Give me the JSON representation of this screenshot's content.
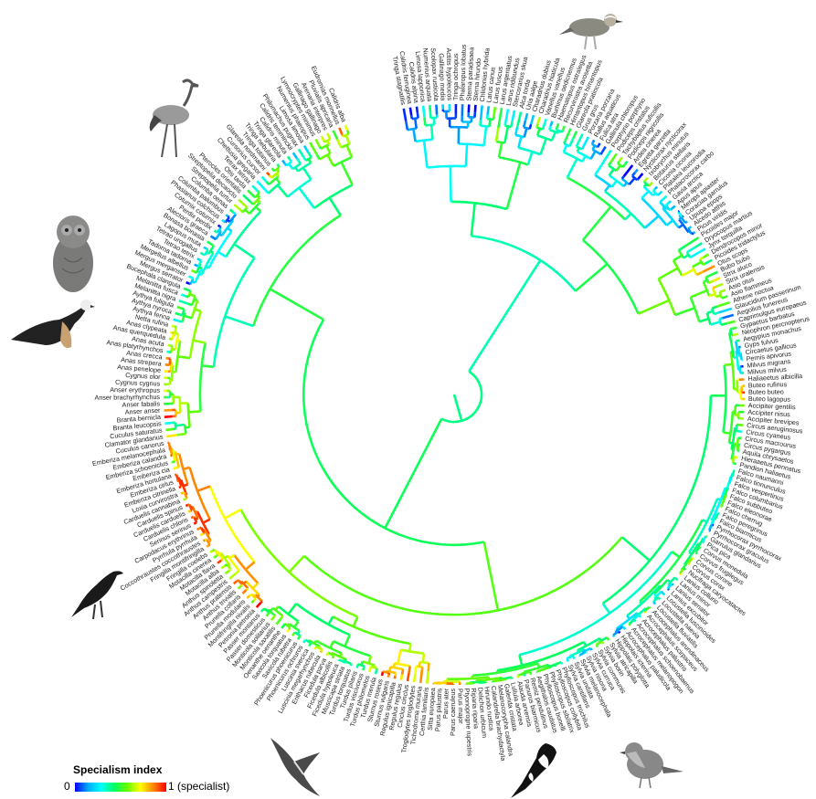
{
  "legend": {
    "title": "Specialism index",
    "min_label": "0",
    "max_label": "1 (specialist)",
    "colors": [
      "#0000ff",
      "#00aaff",
      "#00ffff",
      "#00ff66",
      "#66ff00",
      "#ffff00",
      "#ff8800",
      "#ff0000"
    ]
  },
  "species": [
    "Tringa stagnatilis",
    "Calidris ferruginea",
    "Calidris alpina",
    "Limosa lapponica",
    "Numenius arquata",
    "Scolopax rusticola",
    "Gallinago media",
    "Actitis hypoleucos",
    "Tringa ochropus",
    "Phalaropus lobatus",
    "Sterna paradisaea",
    "Sterna hirundo",
    "Chlidonias hybrida",
    "Larus canus",
    "Larus fuscus",
    "Larus argentatus",
    "Larus ridibundus",
    "Stercorarius skua",
    "Alca torda",
    "Uria aalge",
    "Charadrius dubius",
    "Charadrius hiaticula",
    "Vanellus vanellus",
    "Burhinus oedicnemus",
    "Haematopus ostralegus",
    "Recurvirostra avosetta",
    "Himantopus himantopus",
    "Glareola pratincola",
    "Grus grus",
    "Porzana porzana",
    "Rallus aquaticus",
    "Fulica atra",
    "Gallinula chloropus",
    "Porphyrio porphyrio",
    "Podiceps cristatus",
    "Tachybaptus ruficollis",
    "Podiceps nigricollis",
    "Ardea cinerea",
    "Egretta garzetta",
    "Nycticorax nycticorax",
    "Ixobrychus minutus",
    "Botaurus stellaris",
    "Ciconia ciconia",
    "Platalea leucorodia",
    "Phalacrocorax carbo",
    "Gavia arctica",
    "Apus apus",
    "Merops apiaster",
    "Coracias garrulus",
    "Upupa epops",
    "Alcedo atthis",
    "Picus viridis",
    "Picoides major",
    "Dryocopus martius",
    "Jynx torquilla",
    "Dendrocopos minor",
    "Picoides tridactylus",
    "Otus scops",
    "Bubo bubo",
    "Strix aluco",
    "Strix uralensis",
    "Asio otus",
    "Asio flammeus",
    "Athene noctua",
    "Glaucidium passerinum",
    "Aegolius funereus",
    "Caprimulgus europaeus",
    "Gypaetus barbatus",
    "Neophron percnopterus",
    "Aegypius monachus",
    "Gyps fulvus",
    "Circaetus gallicus",
    "Pernis apivorus",
    "Milvus migrans",
    "Milvus milvus",
    "Haliaeetus albicilla",
    "Buteo rufinus",
    "Buteo buteo",
    "Buteo lagopus",
    "Accipiter gentilis",
    "Accipiter nisus",
    "Accipiter brevipes",
    "Circus aeruginosus",
    "Circus cyaneus",
    "Circus macrourus",
    "Circus pygargus",
    "Aquila chrysaetos",
    "Hieraaetus pennatus",
    "Pandion haliaetus",
    "Falco naumanni",
    "Falco tinnunculus",
    "Falco vespertinus",
    "Falco columbarius",
    "Falco subbuteo",
    "Falco eleonorae",
    "Falco cherrug",
    "Falco peregrinus",
    "Falco biarmicus",
    "Pyrrhocorax pyrrhocorax",
    "Pyrrhocorax graculus",
    "Garrulus glandarius",
    "Pica pica",
    "Corvus monedula",
    "Corvus frugilegus",
    "Corvus corone",
    "Corvus corax",
    "Nucifraga caryocatactes",
    "Lanius collurio",
    "Lanius minor",
    "Lanius senator",
    "Lanius excubitor",
    "Locustella luscinioides",
    "Locustella naevia",
    "Locustella fluviatilis",
    "Acrocephalus arundinaceus",
    "Acrocephalus scirpaceus",
    "Acrocephalus palustris",
    "Acrocephalus schoenobaenus",
    "Acrocephalus melanopogon",
    "Acrocephalus paludicola",
    "Hippolais icterina",
    "Hippolais polyglotta",
    "Sylvia atricapilla",
    "Sylvia borin",
    "Sylvia communis",
    "Sylvia curruca",
    "Sylvia nisoria",
    "Sylvia melanocephala",
    "Sylvia undata",
    "Sylvia cantillans",
    "Phylloscopus trochilus",
    "Phylloscopus collybita",
    "Phylloscopus sibilatrix",
    "Phylloscopus bonelli",
    "Aegithalos caudatus",
    "Remiz pendulinus",
    "Panurus biarmicus",
    "Alauda arvensis",
    "Lullula arborea",
    "Galerida cristata",
    "Melanocorypha calandra",
    "Calandrella brachydactyla",
    "Hirundo rustica",
    "Delichon urbicum",
    "Riparia riparia",
    "Ptyonoprogne rupestris",
    "Parus major",
    "Parus caeruleus",
    "Parus ater",
    "Parus palustris",
    "Sitta europaea",
    "Certhia familiaris",
    "Tichodroma muraria",
    "Troglodytes troglodytes",
    "Cinclus cinclus",
    "Regulus regulus",
    "Regulus ignicapilla",
    "Sturnus vulgaris",
    "Sturnus roseus",
    "Turdus merula",
    "Turdus philomelos",
    "Turdus viscivorus",
    "Turdus pilaris",
    "Turdus torquatus",
    "Muscicapa striata",
    "Ficedula hypoleuca",
    "Ficedula albicollis",
    "Ficedula parva",
    "Erithacus rubecula",
    "Luscinia megarhynchos",
    "Luscinia svecica",
    "Phoenicurus ochruros",
    "Phoenicurus phoenicurus",
    "Saxicola rubetra",
    "Saxicola torquatus",
    "Oenanthe oenanthe",
    "Monticola saxatilis",
    "Monticola solitarius",
    "Passer domesticus",
    "Passer montanus",
    "Petronia petronia",
    "Montifringilla nivalis",
    "Prunella modularis",
    "Prunella collaris",
    "Anthus trivialis",
    "Anthus pratensis",
    "Anthus campestris",
    "Anthus spinoletta",
    "Motacilla alba",
    "Motacilla flava",
    "Motacilla cinerea",
    "Fringilla coelebs",
    "Fringilla montifringilla",
    "Coccothraustes coccothraustes",
    "Pyrrhula pyrrhula",
    "Carpodacus erythrinus",
    "Serinus serinus",
    "Carduelis chloris",
    "Carduelis carduelis",
    "Carduelis spinus",
    "Carduelis cannabina",
    "Loxia curvirostra",
    "Emberiza citrinella",
    "Emberiza cirlus",
    "Emberiza hortulana",
    "Emberiza cia",
    "Emberiza schoeniclus",
    "Emberiza calandra",
    "Emberiza melanocephala",
    "Cuculus canorus",
    "Clamator glandarius",
    "Cuculus saturatus",
    "Branta leucopsis",
    "Branta bernicla",
    "Anser anser",
    "Anser fabalis",
    "Anser brachyrhynchus",
    "Anser erythropus",
    "Cygnus cygnus",
    "Cygnus olor",
    "Anas penelope",
    "Anas strepera",
    "Anas crecca",
    "Anas platyrhynchos",
    "Anas acuta",
    "Anas querquedula",
    "Anas clypeata",
    "Netta rufina",
    "Aythya ferina",
    "Aythya nyroca",
    "Aythya fuligula",
    "Melanitta nigra",
    "Melanitta fusca",
    "Bucephala clangula",
    "Mergus serrator",
    "Mergus merganser",
    "Mergellus albellus",
    "Tadorna tadorna",
    "Tetrao tetrix",
    "Tetrao urogallus",
    "Lagopus muta",
    "Bonasa bonasia",
    "Alectoris graeca",
    "Perdix perdix",
    "Coturnix coturnix",
    "Phasianus colchicus",
    "Columba palumbus",
    "Columba oenas",
    "Streptopelia turtur",
    "Streptopelia decaocto",
    "Pterocles orientalis",
    "Otis tarda",
    "Tetrax tetrax",
    "Chettusia gregaria",
    "Cursorius cursor",
    "Glareola nordmanni",
    "Tringa totanus",
    "Tringa nebularia",
    "Tringa glareola",
    "Calidris minuta",
    "Calidris temminckii",
    "Philomachus pugnax",
    "Limosa limosa",
    "Numenius phaeopus",
    "Lymnocryptes minimus",
    "Gallinago gallinago",
    "Arenaria interpres",
    "Pluvialis apricaria",
    "Eudromias morinellus",
    "Calidris alba"
  ]
}
